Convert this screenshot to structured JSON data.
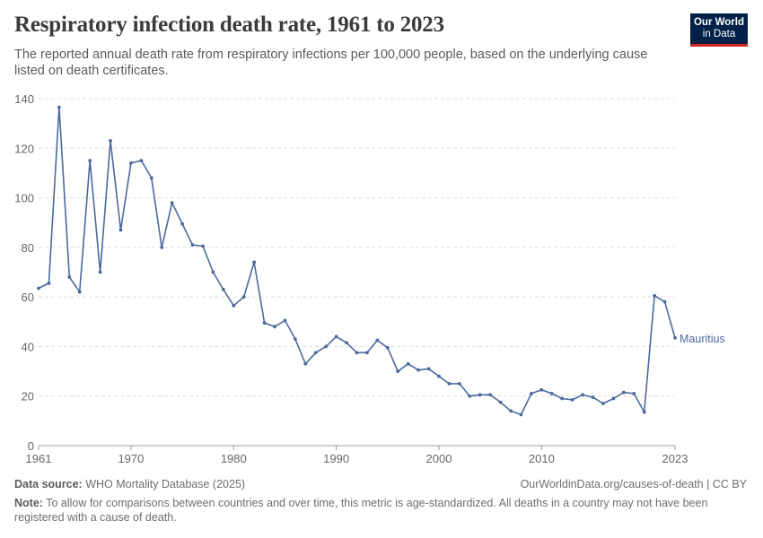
{
  "header": {
    "title": "Respiratory infection death rate, 1961 to 2023",
    "subtitle": "The reported annual death rate from respiratory infections per 100,000 people, based on the underlying cause listed on death certificates."
  },
  "logo": {
    "line1": "Our World",
    "line2": "in Data"
  },
  "footer": {
    "source_label": "Data source:",
    "source_text": "WHO Mortality Database (2025)",
    "url": "OurWorldinData.org/causes-of-death | CC BY",
    "note_label": "Note:",
    "note_text": "To allow for comparisons between countries and over time, this metric is age-standardized. All deaths in a country may not have been registered with a cause of death."
  },
  "colors": {
    "series": "#4c6a9c",
    "grid": "#dddddd",
    "axis": "#666666"
  },
  "chart_data": {
    "type": "line",
    "title": "Respiratory infection death rate, 1961 to 2023",
    "xlabel": "",
    "ylabel": "",
    "xlim": [
      1961,
      2023
    ],
    "ylim": [
      0,
      140
    ],
    "x_ticks": [
      1961,
      1970,
      1980,
      1990,
      2000,
      2010,
      2023
    ],
    "y_ticks": [
      0,
      20,
      40,
      60,
      80,
      100,
      120,
      140
    ],
    "grid": "horizontal dashed",
    "series": [
      {
        "name": "Mauritius",
        "x": [
          1961,
          1962,
          1963,
          1964,
          1965,
          1966,
          1967,
          1968,
          1969,
          1970,
          1971,
          1972,
          1973,
          1974,
          1975,
          1976,
          1977,
          1978,
          1979,
          1980,
          1981,
          1982,
          1983,
          1984,
          1985,
          1986,
          1987,
          1988,
          1989,
          1990,
          1991,
          1992,
          1993,
          1994,
          1995,
          1996,
          1997,
          1998,
          1999,
          2000,
          2001,
          2002,
          2003,
          2004,
          2005,
          2006,
          2007,
          2008,
          2009,
          2010,
          2011,
          2012,
          2013,
          2014,
          2015,
          2016,
          2017,
          2018,
          2019,
          2020,
          2021,
          2022,
          2023
        ],
        "y": [
          63.5,
          65.5,
          136.5,
          68,
          62,
          115,
          70,
          123,
          87,
          114,
          115,
          108,
          80,
          98,
          89.5,
          81,
          80.5,
          70,
          63,
          56.5,
          60,
          74,
          49.5,
          48,
          50.5,
          43,
          33,
          37.5,
          40,
          44,
          41.5,
          37.5,
          37.5,
          42.5,
          39.5,
          30,
          33,
          30.5,
          31,
          28,
          25,
          25,
          20,
          20.5,
          20.5,
          17.5,
          14,
          12.5,
          21,
          22.5,
          21,
          19,
          18.5,
          20.5,
          19.5,
          17,
          19,
          21.5,
          21,
          13.5,
          60.5,
          58,
          43.5
        ]
      }
    ]
  }
}
